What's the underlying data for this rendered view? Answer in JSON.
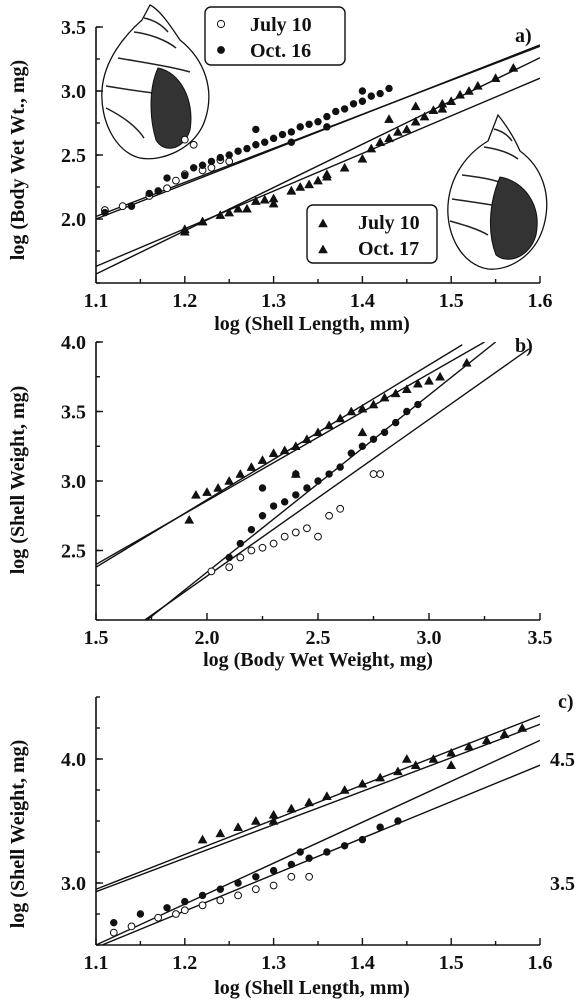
{
  "chart_data": [
    {
      "panel": "a)",
      "type": "scatter",
      "xlabel": "log (Shell Length, mm)",
      "ylabel": "log (Body Wet Wt., mg)",
      "xlim": [
        1.1,
        1.6
      ],
      "ylim": [
        1.5,
        3.5
      ],
      "xticks": [
        "1.1",
        "1.2",
        "1.3",
        "1.4",
        "1.5",
        "1.6"
      ],
      "yticks": [
        "2.0",
        "2.5",
        "3.0",
        "3.5"
      ],
      "legends": [
        {
          "position": "top-center",
          "entries": [
            {
              "marker": "open-circle",
              "label": "July 10"
            },
            {
              "marker": "filled-circle",
              "label": "Oct. 16"
            }
          ]
        },
        {
          "position": "right-middle",
          "entries": [
            {
              "marker": "triangle",
              "label": "July 10"
            },
            {
              "marker": "triangle",
              "label": "Oct. 17"
            }
          ]
        }
      ],
      "series": [
        {
          "label_ref": "July 10 (circles)",
          "marker": "open-circle",
          "points": [
            [
              1.11,
              2.07
            ],
            [
              1.13,
              2.1
            ],
            [
              1.16,
              2.18
            ],
            [
              1.18,
              2.24
            ],
            [
              1.19,
              2.3
            ],
            [
              1.2,
              2.35
            ],
            [
              1.2,
              2.62
            ],
            [
              1.21,
              2.58
            ],
            [
              1.22,
              2.38
            ],
            [
              1.23,
              2.4
            ],
            [
              1.24,
              2.46
            ],
            [
              1.25,
              2.45
            ]
          ]
        },
        {
          "label_ref": "Oct. 16 (circles)",
          "marker": "filled-circle",
          "points": [
            [
              1.11,
              2.05
            ],
            [
              1.14,
              2.1
            ],
            [
              1.16,
              2.2
            ],
            [
              1.17,
              2.22
            ],
            [
              1.18,
              2.32
            ],
            [
              1.2,
              2.34
            ],
            [
              1.21,
              2.4
            ],
            [
              1.22,
              2.42
            ],
            [
              1.23,
              2.45
            ],
            [
              1.24,
              2.48
            ],
            [
              1.25,
              2.5
            ],
            [
              1.26,
              2.53
            ],
            [
              1.27,
              2.55
            ],
            [
              1.28,
              2.58
            ],
            [
              1.29,
              2.6
            ],
            [
              1.3,
              2.63
            ],
            [
              1.31,
              2.66
            ],
            [
              1.32,
              2.68
            ],
            [
              1.33,
              2.72
            ],
            [
              1.34,
              2.74
            ],
            [
              1.35,
              2.76
            ],
            [
              1.36,
              2.8
            ],
            [
              1.37,
              2.84
            ],
            [
              1.38,
              2.86
            ],
            [
              1.39,
              2.9
            ],
            [
              1.4,
              2.92
            ],
            [
              1.41,
              2.96
            ],
            [
              1.42,
              2.98
            ],
            [
              1.43,
              3.02
            ],
            [
              1.28,
              2.7
            ],
            [
              1.32,
              2.6
            ],
            [
              1.36,
              2.72
            ],
            [
              1.4,
              3.0
            ]
          ]
        },
        {
          "label_ref": "July 10 (triangles)",
          "marker": "triangle",
          "points": [
            [
              1.2,
              1.9
            ],
            [
              1.22,
              1.98
            ],
            [
              1.25,
              2.05
            ],
            [
              1.27,
              2.08
            ],
            [
              1.29,
              2.15
            ],
            [
              1.3,
              2.12
            ],
            [
              1.32,
              2.22
            ],
            [
              1.33,
              2.25
            ],
            [
              1.35,
              2.3
            ],
            [
              1.36,
              2.35
            ]
          ]
        },
        {
          "label_ref": "Oct. 17 (triangles)",
          "marker": "triangle",
          "points": [
            [
              1.2,
              1.92
            ],
            [
              1.22,
              1.98
            ],
            [
              1.24,
              2.03
            ],
            [
              1.26,
              2.08
            ],
            [
              1.28,
              2.14
            ],
            [
              1.3,
              2.16
            ],
            [
              1.32,
              2.22
            ],
            [
              1.34,
              2.27
            ],
            [
              1.36,
              2.33
            ],
            [
              1.38,
              2.4
            ],
            [
              1.4,
              2.47
            ],
            [
              1.41,
              2.55
            ],
            [
              1.42,
              2.6
            ],
            [
              1.43,
              2.63
            ],
            [
              1.44,
              2.68
            ],
            [
              1.45,
              2.7
            ],
            [
              1.46,
              2.76
            ],
            [
              1.47,
              2.8
            ],
            [
              1.48,
              2.85
            ],
            [
              1.49,
              2.9
            ],
            [
              1.5,
              2.92
            ],
            [
              1.51,
              2.97
            ],
            [
              1.52,
              3.0
            ],
            [
              1.53,
              3.04
            ],
            [
              1.55,
              3.1
            ],
            [
              1.57,
              3.18
            ],
            [
              1.43,
              2.78
            ],
            [
              1.46,
              2.88
            ],
            [
              1.49,
              2.86
            ]
          ]
        }
      ],
      "fit_lines": [
        [
          [
            1.1,
            2.0
          ],
          [
            1.6,
            3.36
          ]
        ],
        [
          [
            1.1,
            2.02
          ],
          [
            1.6,
            3.35
          ]
        ],
        [
          [
            1.1,
            1.57
          ],
          [
            1.6,
            3.26
          ]
        ],
        [
          [
            1.1,
            1.63
          ],
          [
            1.6,
            3.1
          ]
        ]
      ],
      "annotations": [
        "snail-shell illustration top-left",
        "snail-shell illustration right"
      ]
    },
    {
      "panel": "b)",
      "type": "scatter",
      "xlabel": "log (Body Wet Weight, mg)",
      "ylabel": "log (Shell Weight, mg)",
      "xlim": [
        1.5,
        3.5
      ],
      "ylim": [
        2.0,
        4.0
      ],
      "xticks": [
        "1.5",
        "2.0",
        "2.5",
        "3.0",
        "3.5"
      ],
      "yticks": [
        "2.5",
        "3.0",
        "3.5",
        "4.0"
      ],
      "series": [
        {
          "marker": "open-circle",
          "points": [
            [
              2.02,
              2.35
            ],
            [
              2.1,
              2.38
            ],
            [
              2.15,
              2.45
            ],
            [
              2.2,
              2.5
            ],
            [
              2.25,
              2.52
            ],
            [
              2.3,
              2.55
            ],
            [
              2.35,
              2.6
            ],
            [
              2.4,
              2.63
            ],
            [
              2.45,
              2.66
            ],
            [
              2.5,
              2.6
            ],
            [
              2.55,
              2.75
            ],
            [
              2.6,
              2.8
            ],
            [
              2.75,
              3.05
            ],
            [
              2.78,
              3.05
            ]
          ]
        },
        {
          "marker": "filled-circle",
          "points": [
            [
              2.1,
              2.45
            ],
            [
              2.15,
              2.55
            ],
            [
              2.2,
              2.65
            ],
            [
              2.25,
              2.75
            ],
            [
              2.3,
              2.82
            ],
            [
              2.35,
              2.85
            ],
            [
              2.4,
              2.9
            ],
            [
              2.45,
              2.95
            ],
            [
              2.5,
              3.0
            ],
            [
              2.55,
              3.05
            ],
            [
              2.6,
              3.1
            ],
            [
              2.65,
              3.2
            ],
            [
              2.7,
              3.25
            ],
            [
              2.75,
              3.3
            ],
            [
              2.8,
              3.35
            ],
            [
              2.85,
              3.42
            ],
            [
              2.9,
              3.5
            ],
            [
              2.95,
              3.55
            ],
            [
              2.25,
              2.95
            ],
            [
              2.4,
              3.05
            ]
          ]
        },
        {
          "marker": "triangle",
          "points": [
            [
              1.92,
              2.72
            ],
            [
              1.95,
              2.9
            ],
            [
              2.0,
              2.92
            ],
            [
              2.05,
              2.95
            ],
            [
              2.1,
              3.0
            ],
            [
              2.15,
              3.05
            ],
            [
              2.2,
              3.1
            ],
            [
              2.25,
              3.15
            ],
            [
              2.3,
              3.2
            ],
            [
              2.35,
              3.22
            ],
            [
              2.4,
              3.25
            ],
            [
              2.45,
              3.3
            ],
            [
              2.5,
              3.35
            ],
            [
              2.55,
              3.4
            ],
            [
              2.6,
              3.45
            ],
            [
              2.65,
              3.5
            ],
            [
              2.7,
              3.52
            ],
            [
              2.75,
              3.55
            ],
            [
              2.8,
              3.6
            ],
            [
              2.85,
              3.63
            ],
            [
              2.9,
              3.66
            ],
            [
              2.95,
              3.7
            ],
            [
              3.0,
              3.72
            ],
            [
              3.05,
              3.75
            ],
            [
              3.17,
              3.85
            ],
            [
              2.4,
              3.05
            ],
            [
              2.7,
              3.35
            ]
          ]
        }
      ],
      "fit_lines": [
        [
          [
            1.5,
            2.38
          ],
          [
            3.15,
            3.98
          ]
        ],
        [
          [
            1.5,
            2.4
          ],
          [
            3.25,
            4.0
          ]
        ],
        [
          [
            1.73,
            2.0
          ],
          [
            3.3,
            4.0
          ]
        ],
        [
          [
            1.72,
            2.0
          ],
          [
            3.45,
            3.95
          ]
        ]
      ]
    },
    {
      "panel": "c)",
      "type": "scatter",
      "xlabel": "log (Shell Length, mm)",
      "ylabel": "log (Shell Weight, mg)",
      "xlim": [
        1.1,
        1.6
      ],
      "ylim": [
        2.5,
        4.5
      ],
      "xticks": [
        "1.1",
        "1.2",
        "1.3",
        "1.4",
        "1.5",
        "1.6"
      ],
      "yticks": [
        "3.0",
        "4.0"
      ],
      "right_yticks": [
        "3.5",
        "4.5"
      ],
      "series": [
        {
          "marker": "open-circle",
          "points": [
            [
              1.12,
              2.6
            ],
            [
              1.14,
              2.65
            ],
            [
              1.17,
              2.72
            ],
            [
              1.19,
              2.75
            ],
            [
              1.2,
              2.78
            ],
            [
              1.22,
              2.82
            ],
            [
              1.24,
              2.86
            ],
            [
              1.26,
              2.9
            ],
            [
              1.28,
              2.95
            ],
            [
              1.3,
              2.98
            ],
            [
              1.32,
              3.05
            ],
            [
              1.34,
              3.05
            ]
          ]
        },
        {
          "marker": "filled-circle",
          "points": [
            [
              1.12,
              2.68
            ],
            [
              1.15,
              2.75
            ],
            [
              1.18,
              2.8
            ],
            [
              1.2,
              2.85
            ],
            [
              1.22,
              2.9
            ],
            [
              1.24,
              2.95
            ],
            [
              1.26,
              3.0
            ],
            [
              1.28,
              3.05
            ],
            [
              1.3,
              3.1
            ],
            [
              1.32,
              3.15
            ],
            [
              1.34,
              3.2
            ],
            [
              1.36,
              3.25
            ],
            [
              1.38,
              3.3
            ],
            [
              1.4,
              3.35
            ],
            [
              1.42,
              3.45
            ],
            [
              1.44,
              3.5
            ],
            [
              1.33,
              3.25
            ]
          ]
        },
        {
          "marker": "triangle",
          "points": [
            [
              1.22,
              3.35
            ],
            [
              1.24,
              3.4
            ],
            [
              1.26,
              3.45
            ],
            [
              1.28,
              3.5
            ],
            [
              1.3,
              3.55
            ],
            [
              1.32,
              3.6
            ],
            [
              1.34,
              3.65
            ],
            [
              1.36,
              3.7
            ],
            [
              1.38,
              3.75
            ],
            [
              1.4,
              3.8
            ],
            [
              1.42,
              3.85
            ],
            [
              1.44,
              3.9
            ],
            [
              1.46,
              3.95
            ],
            [
              1.48,
              4.0
            ],
            [
              1.5,
              4.05
            ],
            [
              1.52,
              4.1
            ],
            [
              1.54,
              4.15
            ],
            [
              1.56,
              4.2
            ],
            [
              1.58,
              4.25
            ],
            [
              1.3,
              3.5
            ],
            [
              1.45,
              4.0
            ],
            [
              1.5,
              3.95
            ]
          ]
        }
      ],
      "fit_lines": [
        [
          [
            1.1,
            2.93
          ],
          [
            1.6,
            4.28
          ]
        ],
        [
          [
            1.1,
            2.95
          ],
          [
            1.6,
            4.35
          ]
        ],
        [
          [
            1.1,
            2.5
          ],
          [
            1.6,
            4.15
          ]
        ],
        [
          [
            1.1,
            2.48
          ],
          [
            1.6,
            3.95
          ]
        ]
      ],
      "annotations": [
        "right-side tick labels 3.5 and 4.5"
      ]
    }
  ]
}
